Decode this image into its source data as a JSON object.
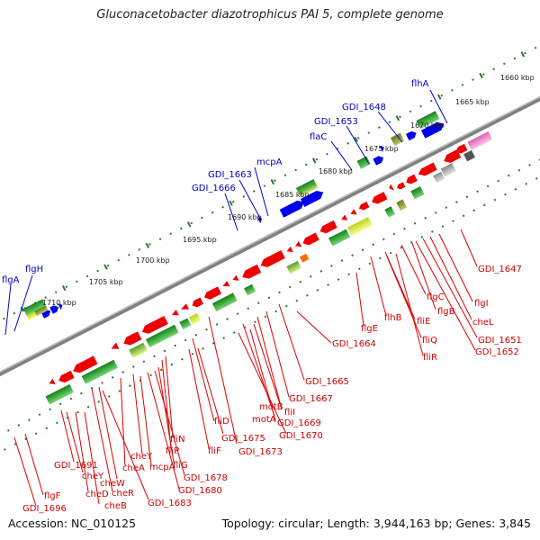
{
  "title": "Gluconacetobacter diazotrophicus PAI 5, complete genome",
  "footer": {
    "accession": "Accession: NC_010125",
    "topology": "Topology: circular; Length: 3,944,163 bp; Genes: 3,845"
  },
  "colors": {
    "backbone": "#808080",
    "forward_strand_genes": "#0000ee",
    "reverse_strand_genes": "#ee0000",
    "label_blue": "#0000cc",
    "label_red": "#cc0000",
    "cog_green": "#2e9a2e",
    "tick_green": "#2a7a2a"
  },
  "kbp_ticks": [
    "1660 kbp",
    "1665 kbp",
    "1670 kbp",
    "1675 kbp",
    "1680 kbp",
    "1685 kbp",
    "1690 kbp",
    "1695 kbp",
    "1700 kbp",
    "1705 kbp",
    "1710 kbp"
  ],
  "blue_labels": [
    "flhA",
    "GDI_1648",
    "GDI_1653",
    "flaC",
    "mcpA",
    "GDI_1663",
    "GDI_1666",
    "flgH",
    "flgA"
  ],
  "red_labels": [
    "GDI_1647",
    "flgI",
    "cheL",
    "GDI_1651",
    "GDI_1652",
    "flgC",
    "flgB",
    "flhB",
    "fliE",
    "fliQ",
    "fliR",
    "flgE",
    "GDI_1664",
    "GDI_1665",
    "GDI_1667",
    "fliI",
    "motB",
    "GDI_1669",
    "motA",
    "GDI_1670",
    "GDI_1673",
    "fliD",
    "GDI_1675",
    "fliF",
    "fliN",
    "fliP",
    "fliG",
    "GDI_1678",
    "GDI_1680",
    "cheY",
    "mcpA",
    "cheA",
    "cheW",
    "cheR",
    "GDI_1683",
    "GDI_1691",
    "cheY",
    "cheD",
    "cheB",
    "flgF",
    "GDI_1696"
  ]
}
